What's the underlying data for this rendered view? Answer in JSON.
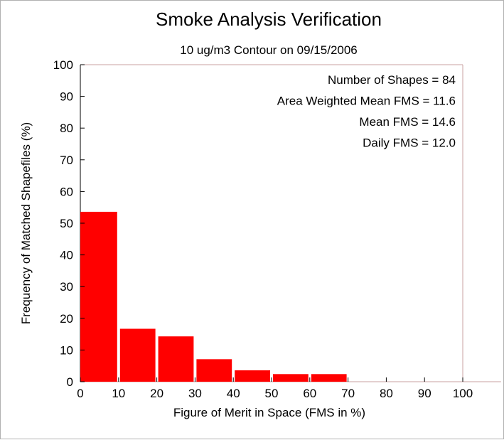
{
  "chart_data": {
    "type": "bar",
    "title": "Smoke Analysis Verification",
    "subtitle": "10 ug/m3 Contour on 09/15/2006",
    "xlabel": "Figure of Merit in Space (FMS in %)",
    "ylabel": "Frequency of Matched Shapefiles (%)",
    "xlim": [
      0,
      110
    ],
    "ylim": [
      0,
      100
    ],
    "x_ticks": [
      0,
      10,
      20,
      30,
      40,
      50,
      60,
      70,
      80,
      90,
      100
    ],
    "y_ticks": [
      0,
      10,
      20,
      30,
      40,
      50,
      60,
      70,
      80,
      90,
      100
    ],
    "bins": [
      {
        "from": 0,
        "to": 10,
        "value": 53.6
      },
      {
        "from": 10,
        "to": 20,
        "value": 16.7
      },
      {
        "from": 20,
        "to": 30,
        "value": 14.3
      },
      {
        "from": 30,
        "to": 40,
        "value": 7.1
      },
      {
        "from": 40,
        "to": 50,
        "value": 3.6
      },
      {
        "from": 50,
        "to": 60,
        "value": 2.4
      },
      {
        "from": 60,
        "to": 70,
        "value": 2.4
      },
      {
        "from": 70,
        "to": 80,
        "value": 0
      },
      {
        "from": 80,
        "to": 90,
        "value": 0
      },
      {
        "from": 90,
        "to": 100,
        "value": 0
      },
      {
        "from": 100,
        "to": 110,
        "value": 0
      }
    ],
    "bar_color": "#ff0000",
    "annotations": [
      "Number of Shapes = 84",
      "Area Weighted Mean FMS = 11.6",
      "Mean FMS = 14.6",
      "Daily FMS = 12.0"
    ],
    "grid": false,
    "legend": "none"
  }
}
